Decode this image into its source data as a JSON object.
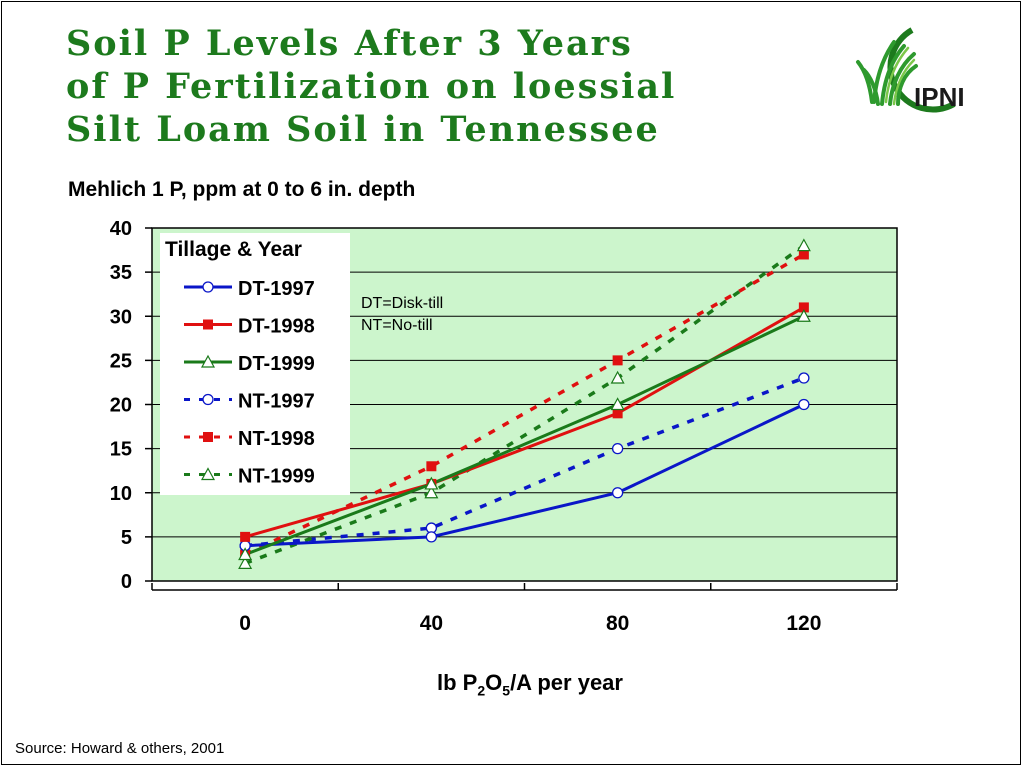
{
  "title_lines": [
    "Soil P Levels After 3 Years",
    "of P Fertilization on loessial",
    "Silt Loam Soil in Tennessee"
  ],
  "logo_text": "IPNI",
  "source": "Source: Howard & others, 2001",
  "colors": {
    "title": "#1d7a1d",
    "plot_bg": "#ccf5cc",
    "blue": "#0a16c8",
    "red": "#e01010",
    "green": "#1a7a1a"
  },
  "chart_data": {
    "type": "line",
    "ylabel": "Mehlich 1 P, ppm at 0 to 6 in. depth",
    "xlabel_parts": [
      "lb P",
      "2",
      "O",
      "5",
      "/A per year"
    ],
    "ylim": [
      0,
      40
    ],
    "yticks": [
      "0",
      "5",
      "10",
      "15",
      "20",
      "25",
      "30",
      "35",
      "40"
    ],
    "categories": [
      "0",
      "40",
      "80",
      "120"
    ],
    "grid": true,
    "legend_title": "Tillage & Year",
    "legend_position": "top-left",
    "note_lines": [
      "DT=Disk-till",
      "NT=No-till"
    ],
    "series": [
      {
        "name": "DT-1997",
        "values": [
          4,
          5,
          10,
          20
        ],
        "color": "#0a16c8",
        "dashed": false,
        "marker": "circle"
      },
      {
        "name": "DT-1998",
        "values": [
          5,
          11,
          19,
          31
        ],
        "color": "#e01010",
        "dashed": false,
        "marker": "square"
      },
      {
        "name": "DT-1999",
        "values": [
          3,
          11,
          20,
          30
        ],
        "color": "#1a7a1a",
        "dashed": false,
        "marker": "triangle"
      },
      {
        "name": "NT-1997",
        "values": [
          4,
          6,
          15,
          23
        ],
        "color": "#0a16c8",
        "dashed": true,
        "marker": "circle"
      },
      {
        "name": "NT-1998",
        "values": [
          3,
          13,
          25,
          37
        ],
        "color": "#e01010",
        "dashed": true,
        "marker": "square"
      },
      {
        "name": "NT-1999",
        "values": [
          2,
          10,
          23,
          38
        ],
        "color": "#1a7a1a",
        "dashed": true,
        "marker": "triangle"
      }
    ]
  }
}
